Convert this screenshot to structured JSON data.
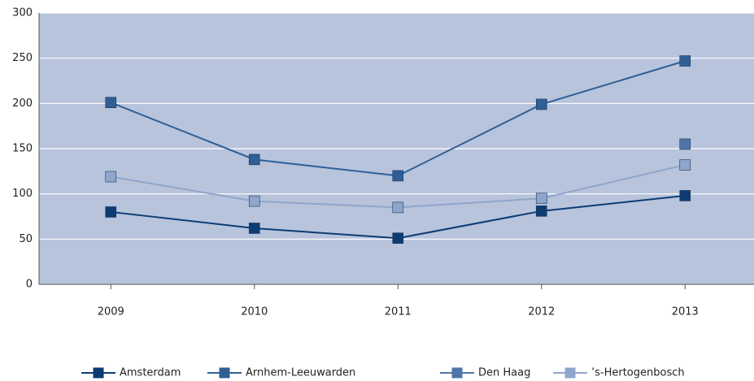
{
  "chart_data": {
    "type": "line",
    "categories": [
      "2009",
      "2010",
      "2011",
      "2012",
      "2013"
    ],
    "series": [
      {
        "name": "Amsterdam",
        "color": "#0d3c73",
        "values": [
          80,
          62,
          51,
          81,
          98
        ]
      },
      {
        "name": "Arnhem-Leeuwarden",
        "color": "#2f5f95",
        "values": [
          201,
          138,
          120,
          199,
          247
        ]
      },
      {
        "name": "Den Haag",
        "color": "#4f75a8",
        "values": [
          null,
          null,
          null,
          null,
          155
        ]
      },
      {
        "name": "’s-Hertogenbosch",
        "color": "#8fa6cc",
        "values": [
          119,
          92,
          85,
          95,
          132
        ]
      }
    ],
    "ylim": [
      0,
      300
    ],
    "yticks": [
      0,
      50,
      100,
      150,
      200,
      250,
      300
    ],
    "grid": true,
    "legend": "bottom"
  }
}
